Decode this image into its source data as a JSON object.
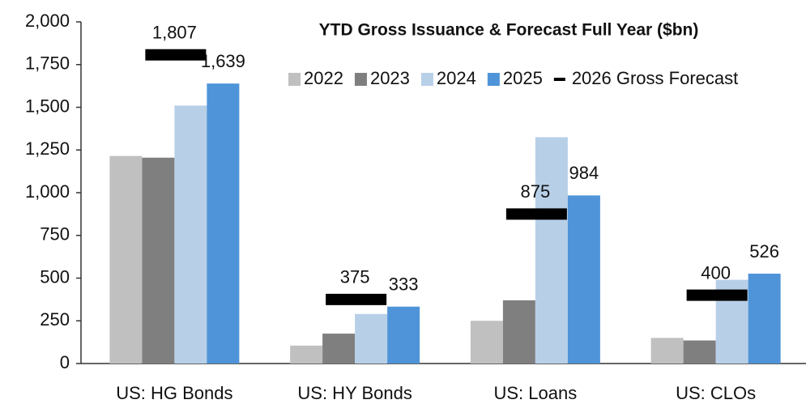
{
  "chart_data": {
    "type": "bar",
    "title": "YTD Gross Issuance & Forecast Full Year ($bn)",
    "categories": [
      "US: HG Bonds",
      "US: HY Bonds",
      "US: Loans",
      "US: CLOs"
    ],
    "series": [
      {
        "name": "2022",
        "color": "#c0c0c0",
        "values": [
          1215,
          105,
          250,
          150
        ]
      },
      {
        "name": "2023",
        "color": "#7f7f7f",
        "values": [
          1205,
          175,
          370,
          135
        ]
      },
      {
        "name": "2024",
        "color": "#b8cfe8",
        "values": [
          1510,
          290,
          1325,
          490
        ]
      },
      {
        "name": "2025",
        "color": "#4f94d8",
        "values": [
          1639,
          333,
          984,
          526
        ],
        "value_labels": [
          "1,639",
          "333",
          "984",
          "526"
        ]
      },
      {
        "name": "2026 Gross Forecast",
        "color": "#000000",
        "mark": "dash",
        "values": [
          1807,
          375,
          875,
          400
        ],
        "value_labels": [
          "1,807",
          "375",
          "875",
          "400"
        ]
      }
    ],
    "ylim": [
      0,
      2000
    ],
    "yticks": [
      0,
      250,
      500,
      750,
      {
        "value": 1000,
        "label": "1,000"
      },
      {
        "value": 1250,
        "label": "1,250"
      },
      {
        "value": 1500,
        "label": "1,500"
      },
      {
        "value": 1750,
        "label": "1,750"
      },
      {
        "value": 2000,
        "label": "2,000"
      }
    ],
    "grid": false,
    "legend": "top-right"
  }
}
